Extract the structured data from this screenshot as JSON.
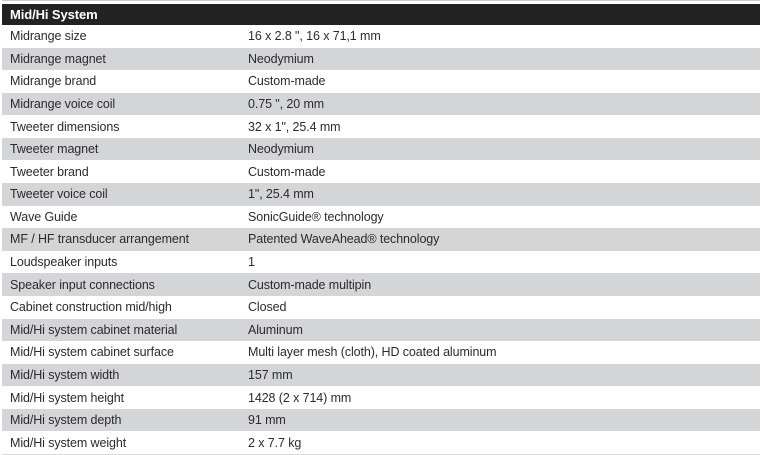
{
  "table": {
    "title": "Mid/Hi System",
    "rows": [
      {
        "label": "Midrange size",
        "value": "16 x 2.8 \", 16 x 71,1 mm"
      },
      {
        "label": "Midrange magnet",
        "value": "Neodymium"
      },
      {
        "label": "Midrange brand",
        "value": "Custom-made"
      },
      {
        "label": "Midrange voice coil",
        "value": "0.75 \", 20 mm"
      },
      {
        "label": "Tweeter dimensions",
        "value": "32 x 1\", 25.4 mm"
      },
      {
        "label": "Tweeter magnet",
        "value": "Neodymium"
      },
      {
        "label": "Tweeter brand",
        "value": "Custom-made"
      },
      {
        "label": "Tweeter voice coil",
        "value": "1\", 25.4 mm"
      },
      {
        "label": "Wave Guide",
        "value": "SonicGuide® technology"
      },
      {
        "label": "MF / HF transducer arrangement",
        "value": "Patented WaveAhead® technology"
      },
      {
        "label": "Loudspeaker inputs",
        "value": "1"
      },
      {
        "label": "Speaker input connections",
        "value": "Custom-made multipin"
      },
      {
        "label": "Cabinet construction mid/high",
        "value": "Closed"
      },
      {
        "label": "Mid/Hi system cabinet material",
        "value": "Aluminum"
      },
      {
        "label": "Mid/Hi system cabinet surface",
        "value": "Multi layer mesh (cloth), HD coated aluminum"
      },
      {
        "label": "Mid/Hi system width",
        "value": "157 mm"
      },
      {
        "label": "Mid/Hi system height",
        "value": "1428 (2 x 714) mm"
      },
      {
        "label": "Mid/Hi system depth",
        "value": "91 mm"
      },
      {
        "label": "Mid/Hi system weight",
        "value": "2 x 7.7 kg"
      }
    ]
  },
  "colors": {
    "header_bg": "#242122",
    "header_text": "#ffffff",
    "row_bg": "#ffffff",
    "row_alt_bg": "#d3d5d6",
    "text": "#2d2a2b",
    "top_line": "#c9cacb"
  }
}
